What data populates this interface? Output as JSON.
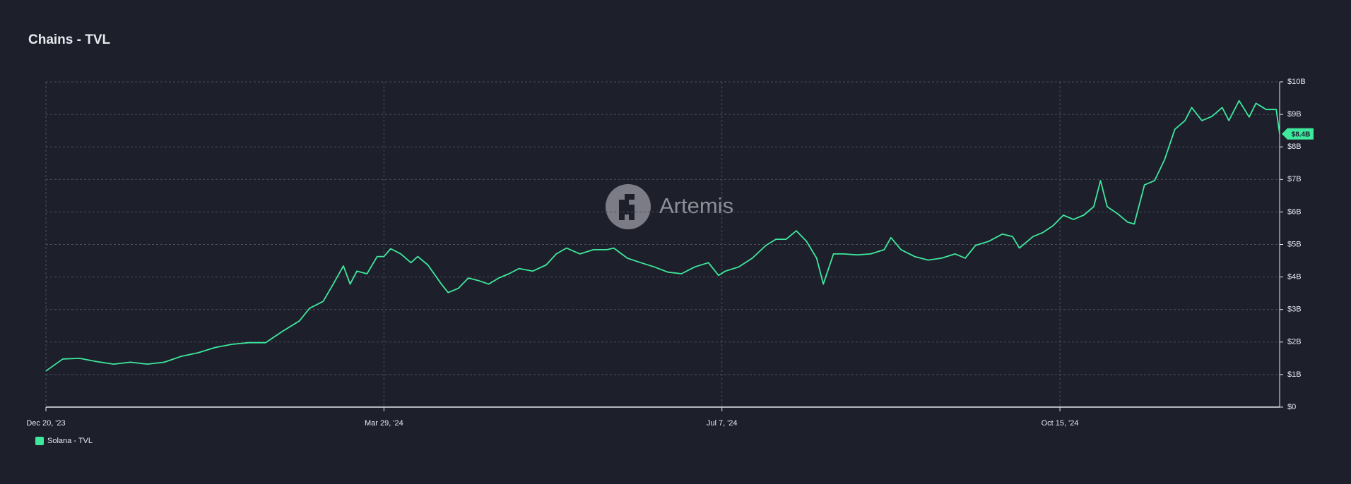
{
  "chart_data": {
    "type": "line",
    "title": "Chains - TVL",
    "watermark": "Artemis",
    "x": [
      "2023-12-20",
      "2023-12-25",
      "2023-12-30",
      "2024-01-04",
      "2024-01-09",
      "2024-01-14",
      "2024-01-19",
      "2024-01-24",
      "2024-01-29",
      "2024-02-03",
      "2024-02-08",
      "2024-02-13",
      "2024-02-18",
      "2024-02-23",
      "2024-02-28",
      "2024-03-04",
      "2024-03-07",
      "2024-03-11",
      "2024-03-14",
      "2024-03-17",
      "2024-03-19",
      "2024-03-21",
      "2024-03-24",
      "2024-03-27",
      "2024-03-29",
      "2024-03-31",
      "2024-04-03",
      "2024-04-06",
      "2024-04-08",
      "2024-04-11",
      "2024-04-15",
      "2024-04-17",
      "2024-04-20",
      "2024-04-23",
      "2024-04-26",
      "2024-04-29",
      "2024-05-02",
      "2024-05-05",
      "2024-05-08",
      "2024-05-12",
      "2024-05-16",
      "2024-05-19",
      "2024-05-22",
      "2024-05-26",
      "2024-05-30",
      "2024-06-03",
      "2024-06-05",
      "2024-06-09",
      "2024-06-13",
      "2024-06-17",
      "2024-06-21",
      "2024-06-25",
      "2024-06-29",
      "2024-07-03",
      "2024-07-06",
      "2024-07-08",
      "2024-07-12",
      "2024-07-16",
      "2024-07-20",
      "2024-07-23",
      "2024-07-26",
      "2024-07-29",
      "2024-08-01",
      "2024-08-04",
      "2024-08-06",
      "2024-08-09",
      "2024-08-12",
      "2024-08-16",
      "2024-08-20",
      "2024-08-24",
      "2024-08-26",
      "2024-08-29",
      "2024-09-02",
      "2024-09-06",
      "2024-09-10",
      "2024-09-14",
      "2024-09-17",
      "2024-09-20",
      "2024-09-24",
      "2024-09-28",
      "2024-10-01",
      "2024-10-03",
      "2024-10-07",
      "2024-10-10",
      "2024-10-13",
      "2024-10-16",
      "2024-10-19",
      "2024-10-22",
      "2024-10-25",
      "2024-10-27",
      "2024-10-29",
      "2024-11-01",
      "2024-11-04",
      "2024-11-06",
      "2024-11-09",
      "2024-11-12",
      "2024-11-15",
      "2024-11-18",
      "2024-11-21",
      "2024-11-23",
      "2024-11-26",
      "2024-11-29",
      "2024-12-02",
      "2024-12-04",
      "2024-12-07",
      "2024-12-10",
      "2024-12-12",
      "2024-12-15",
      "2024-12-18",
      "2024-12-19"
    ],
    "series": [
      {
        "name": "Solana - TVL",
        "color": "#3ee89c",
        "values": [
          1.11,
          1.48,
          1.5,
          1.4,
          1.32,
          1.38,
          1.32,
          1.38,
          1.56,
          1.67,
          1.83,
          1.93,
          1.98,
          1.98,
          2.33,
          2.65,
          3.04,
          3.25,
          3.78,
          4.34,
          3.78,
          4.18,
          4.1,
          4.63,
          4.63,
          4.87,
          4.71,
          4.44,
          4.63,
          4.37,
          3.78,
          3.52,
          3.65,
          3.97,
          3.89,
          3.78,
          3.97,
          4.1,
          4.26,
          4.18,
          4.37,
          4.71,
          4.89,
          4.71,
          4.84,
          4.84,
          4.89,
          4.58,
          4.44,
          4.31,
          4.15,
          4.1,
          4.31,
          4.44,
          4.05,
          4.18,
          4.31,
          4.58,
          4.97,
          5.16,
          5.16,
          5.42,
          5.1,
          4.58,
          3.78,
          4.71,
          4.71,
          4.68,
          4.71,
          4.84,
          5.21,
          4.84,
          4.63,
          4.52,
          4.58,
          4.71,
          4.58,
          4.97,
          5.1,
          5.32,
          5.24,
          4.89,
          5.24,
          5.37,
          5.58,
          5.9,
          5.77,
          5.9,
          6.16,
          6.96,
          6.16,
          5.95,
          5.69,
          5.63,
          6.83,
          6.96,
          7.62,
          8.54,
          8.81,
          9.21,
          8.81,
          8.94,
          9.21,
          8.81,
          9.42,
          8.92,
          9.34,
          9.15,
          9.15,
          8.4
        ]
      }
    ],
    "current_label": "$8.4B",
    "xlim": [
      "2023-12-20",
      "2024-12-19"
    ],
    "xticks": [
      {
        "value": "2023-12-20",
        "label": "Dec 20, '23"
      },
      {
        "value": "2024-03-29",
        "label": "Mar 29, '24"
      },
      {
        "value": "2024-07-07",
        "label": "Jul 7, '24"
      },
      {
        "value": "2024-10-15",
        "label": "Oct 15, '24"
      }
    ],
    "ylim": [
      0,
      10
    ],
    "yticks": [
      {
        "value": 0,
        "label": "$0"
      },
      {
        "value": 1,
        "label": "$1B"
      },
      {
        "value": 2,
        "label": "$2B"
      },
      {
        "value": 3,
        "label": "$3B"
      },
      {
        "value": 4,
        "label": "$4B"
      },
      {
        "value": 5,
        "label": "$5B"
      },
      {
        "value": 6,
        "label": "$6B"
      },
      {
        "value": 7,
        "label": "$7B"
      },
      {
        "value": 8,
        "label": "$8B"
      },
      {
        "value": 9,
        "label": "$9B"
      },
      {
        "value": 10,
        "label": "$10B"
      }
    ],
    "grid": true,
    "legend": "bottom-left"
  }
}
